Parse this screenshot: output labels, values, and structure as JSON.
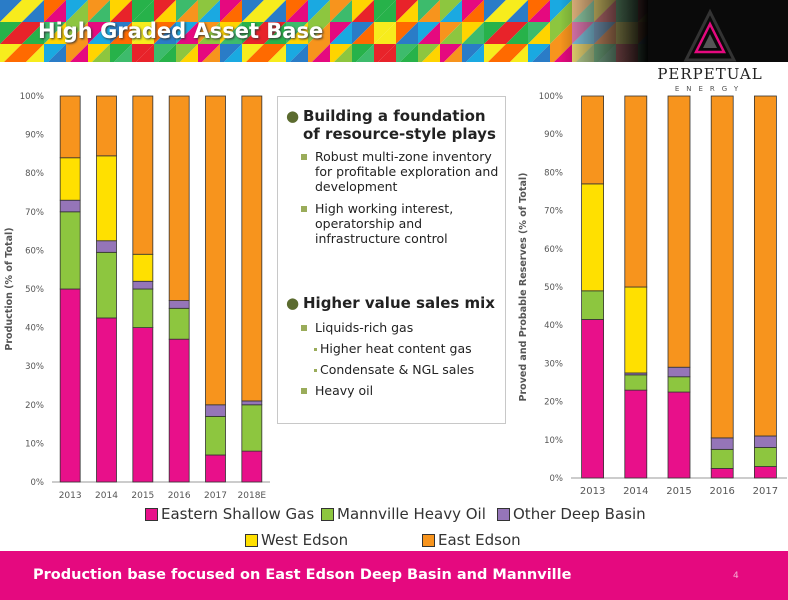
{
  "header": {
    "title": "High Graded Asset Base"
  },
  "logo": {
    "name": "PERPETUAL",
    "subtitle": "ENERGY",
    "icon": "perpetual-triangle-logo-icon"
  },
  "colors": {
    "Eastern Shallow Gas": "#e8108a",
    "Mannville Heavy Oil": "#8dc63f",
    "Other Deep Basin": "#9575b8",
    "West Edson": "#ffe000",
    "East Edson": "#f7941d",
    "footer": "#e5097f"
  },
  "bullets": [
    {
      "text": "Building a foundation of resource-style plays",
      "sub": [
        {
          "text": "Robust multi-zone inventory for profitable exploration and development",
          "sub": []
        },
        {
          "text": "High working interest, operatorship and infrastructure control",
          "sub": []
        }
      ]
    },
    {
      "text": "Higher value sales mix",
      "sub": [
        {
          "text": "Liquids-rich gas",
          "sub": [
            "Higher heat content gas",
            "Condensate & NGL sales"
          ]
        },
        {
          "text": "Heavy oil",
          "sub": []
        }
      ]
    }
  ],
  "chart_data": [
    {
      "type": "bar",
      "stacked": true,
      "title": "",
      "ylabel": "Production (% of Total)",
      "ylim": [
        0,
        100
      ],
      "yticks": [
        "0%",
        "10%",
        "20%",
        "30%",
        "40%",
        "50%",
        "60%",
        "70%",
        "80%",
        "90%",
        "100%"
      ],
      "grid": false,
      "categories": [
        "2013",
        "2014",
        "2015",
        "2016",
        "2017",
        "2018E"
      ],
      "series": [
        {
          "name": "Eastern Shallow Gas",
          "values": [
            50,
            42.5,
            40,
            37,
            7,
            8
          ]
        },
        {
          "name": "Mannville Heavy Oil",
          "values": [
            20,
            17,
            10,
            8,
            10,
            12
          ]
        },
        {
          "name": "Other Deep Basin",
          "values": [
            3,
            3,
            2,
            2,
            3,
            1
          ]
        },
        {
          "name": "West Edson",
          "values": [
            11,
            22,
            7,
            0,
            0,
            0
          ]
        },
        {
          "name": "East Edson",
          "values": [
            16,
            15.5,
            41,
            53,
            80,
            79
          ]
        }
      ]
    },
    {
      "type": "bar",
      "stacked": true,
      "title": "",
      "ylabel": "Proved and Probable Reserves (% of Total)",
      "ylim": [
        0,
        100
      ],
      "yticks": [
        "0%",
        "10%",
        "20%",
        "30%",
        "40%",
        "50%",
        "60%",
        "70%",
        "80%",
        "90%",
        "100%"
      ],
      "grid": false,
      "categories": [
        "2013",
        "2014",
        "2015",
        "2016",
        "2017"
      ],
      "series": [
        {
          "name": "Eastern Shallow Gas",
          "values": [
            41.5,
            23,
            22.5,
            2.5,
            3
          ]
        },
        {
          "name": "Mannville Heavy Oil",
          "values": [
            7.5,
            4,
            4,
            5,
            5
          ]
        },
        {
          "name": "Other Deep Basin",
          "values": [
            0,
            0.5,
            2.5,
            3,
            3
          ]
        },
        {
          "name": "West Edson",
          "values": [
            28,
            22.5,
            0,
            0,
            0
          ]
        },
        {
          "name": "East Edson",
          "values": [
            23,
            50,
            71,
            89.5,
            89
          ]
        }
      ]
    }
  ],
  "legend": [
    "Eastern Shallow Gas",
    "Mannville Heavy Oil",
    "Other Deep Basin",
    "West Edson",
    "East Edson"
  ],
  "footer": {
    "text": "Production base focused on East Edson Deep Basin and Mannville",
    "page": "4"
  }
}
